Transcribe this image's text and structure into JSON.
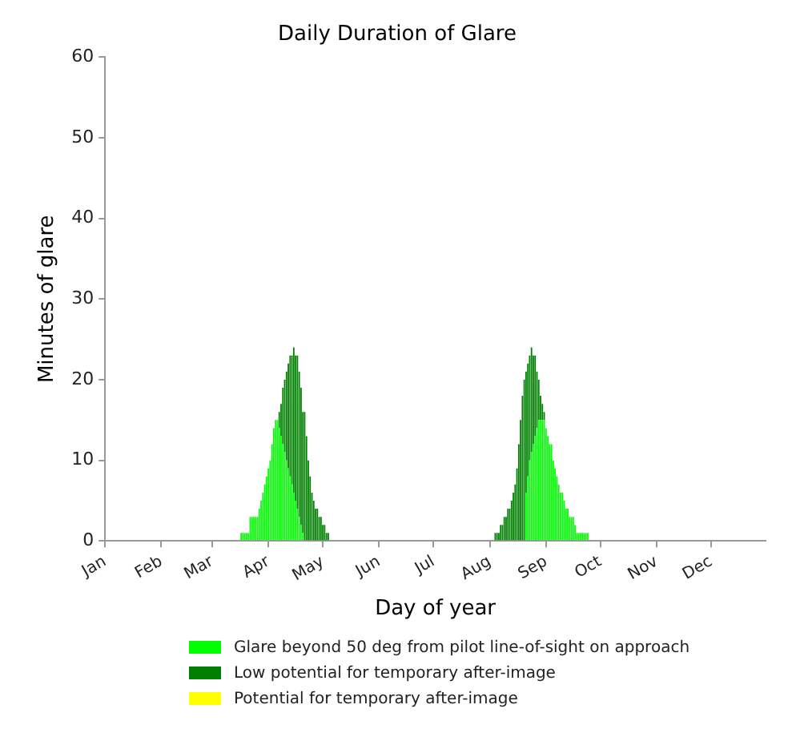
{
  "chart_data": {
    "type": "bar",
    "title": "Daily Duration of Glare",
    "xlabel": "Day of year",
    "ylabel": "Minutes of glare",
    "stacked": true,
    "legend": "bottom",
    "grid": false,
    "xlim": [
      "--01-01",
      "--12-31"
    ],
    "xticks": [
      {
        "value": "--01-01",
        "label": "Jan"
      },
      {
        "value": "--02-01",
        "label": "Feb"
      },
      {
        "value": "--03-01",
        "label": "Mar"
      },
      {
        "value": "--04-01",
        "label": "Apr"
      },
      {
        "value": "--05-01",
        "label": "May"
      },
      {
        "value": "--06-01",
        "label": "Jun"
      },
      {
        "value": "--07-01",
        "label": "Jul"
      },
      {
        "value": "--08-01",
        "label": "Aug"
      },
      {
        "value": "--09-01",
        "label": "Sep"
      },
      {
        "value": "--10-01",
        "label": "Oct"
      },
      {
        "value": "--11-01",
        "label": "Nov"
      },
      {
        "value": "--12-01",
        "label": "Dec"
      }
    ],
    "ylim": [
      0,
      60
    ],
    "yticks": [
      0,
      10,
      20,
      30,
      40,
      50,
      60
    ],
    "x": [
      "--03-17",
      "--03-18",
      "--03-19",
      "--03-20",
      "--03-21",
      "--03-22",
      "--03-23",
      "--03-24",
      "--03-25",
      "--03-26",
      "--03-27",
      "--03-28",
      "--03-29",
      "--03-30",
      "--03-31",
      "--04-01",
      "--04-02",
      "--04-03",
      "--04-04",
      "--04-05",
      "--04-06",
      "--04-07",
      "--04-08",
      "--04-09",
      "--04-10",
      "--04-11",
      "--04-12",
      "--04-13",
      "--04-14",
      "--04-15",
      "--04-16",
      "--04-17",
      "--04-18",
      "--04-19",
      "--04-20",
      "--04-21",
      "--04-22",
      "--04-23",
      "--04-24",
      "--04-25",
      "--04-26",
      "--04-27",
      "--04-28",
      "--04-29",
      "--04-30",
      "--05-01",
      "--05-02",
      "--05-03",
      "--05-04",
      "--08-04",
      "--08-05",
      "--08-06",
      "--08-07",
      "--08-08",
      "--08-09",
      "--08-10",
      "--08-11",
      "--08-12",
      "--08-13",
      "--08-14",
      "--08-15",
      "--08-16",
      "--08-17",
      "--08-18",
      "--08-19",
      "--08-20",
      "--08-21",
      "--08-22",
      "--08-23",
      "--08-24",
      "--08-25",
      "--08-26",
      "--08-27",
      "--08-28",
      "--08-29",
      "--08-30",
      "--08-31",
      "--09-01",
      "--09-02",
      "--09-03",
      "--09-04",
      "--09-05",
      "--09-06",
      "--09-07",
      "--09-08",
      "--09-09",
      "--09-10",
      "--09-11",
      "--09-12",
      "--09-13",
      "--09-14",
      "--09-15",
      "--09-16",
      "--09-17",
      "--09-18",
      "--09-19",
      "--09-20",
      "--09-21",
      "--09-22",
      "--09-23",
      "--09-24"
    ],
    "series": [
      {
        "name": "Glare beyond 50 deg from pilot line-of-sight on approach",
        "color": "#00ff00",
        "values": [
          1,
          1,
          1,
          1,
          1,
          3,
          3,
          3,
          3,
          3,
          4,
          5,
          6,
          7,
          8,
          9,
          10,
          12,
          14,
          15,
          15,
          14,
          13,
          12,
          11,
          10,
          9,
          8,
          7,
          6,
          5,
          4,
          3,
          2,
          1,
          null,
          null,
          null,
          null,
          null,
          null,
          null,
          null,
          null,
          null,
          null,
          null,
          null,
          null,
          null,
          null,
          null,
          null,
          null,
          null,
          null,
          null,
          null,
          null,
          null,
          null,
          null,
          null,
          null,
          null,
          null,
          6,
          8,
          10,
          11,
          12,
          13,
          14,
          15,
          15,
          15,
          15,
          14,
          13,
          12,
          12,
          10,
          9,
          8,
          7,
          6,
          6,
          5,
          4,
          4,
          3,
          3,
          3,
          2,
          1,
          1,
          1,
          1,
          1,
          1,
          1
        ]
      },
      {
        "name": "Low potential for temporary after-image",
        "color": "#008000",
        "values": [
          null,
          null,
          null,
          null,
          null,
          null,
          null,
          null,
          null,
          null,
          null,
          null,
          null,
          null,
          null,
          null,
          null,
          null,
          null,
          null,
          null,
          2,
          4,
          7,
          9,
          11,
          13,
          15,
          16,
          18,
          18,
          19,
          18,
          17,
          15,
          16,
          13,
          10,
          8,
          6,
          5,
          4,
          4,
          3,
          3,
          2,
          2,
          1,
          1,
          1,
          1,
          1,
          2,
          2,
          3,
          3,
          4,
          4,
          5,
          6,
          7,
          9,
          12,
          15,
          18,
          20,
          15,
          14,
          13,
          13,
          11,
          10,
          7,
          5,
          3,
          2,
          1,
          null,
          null,
          null,
          null,
          null,
          null,
          null,
          null,
          null,
          null,
          null,
          null,
          null,
          null,
          null,
          null,
          null,
          null,
          null,
          null,
          null,
          null,
          null,
          null
        ]
      },
      {
        "name": "Potential for temporary after-image",
        "color": "#ffff00",
        "values": [
          null,
          null,
          null,
          null,
          null,
          null,
          null,
          null,
          null,
          null,
          null,
          null,
          null,
          null,
          null,
          null,
          null,
          null,
          null,
          null,
          null,
          null,
          null,
          null,
          null,
          null,
          null,
          null,
          null,
          null,
          null,
          null,
          null,
          null,
          null,
          null,
          null,
          null,
          null,
          null,
          null,
          null,
          null,
          null,
          null,
          null,
          null,
          null,
          null,
          null,
          null,
          null,
          null,
          null,
          null,
          null,
          null,
          null,
          null,
          null,
          null,
          null,
          null,
          null,
          null,
          null,
          null,
          null,
          null,
          null,
          null,
          null,
          null,
          null,
          null,
          null,
          null,
          null,
          null,
          null,
          null,
          null,
          null,
          null,
          null,
          null,
          null,
          null,
          null,
          null,
          null,
          null,
          null,
          null,
          null,
          null,
          null,
          null,
          null,
          null,
          null
        ]
      }
    ]
  }
}
